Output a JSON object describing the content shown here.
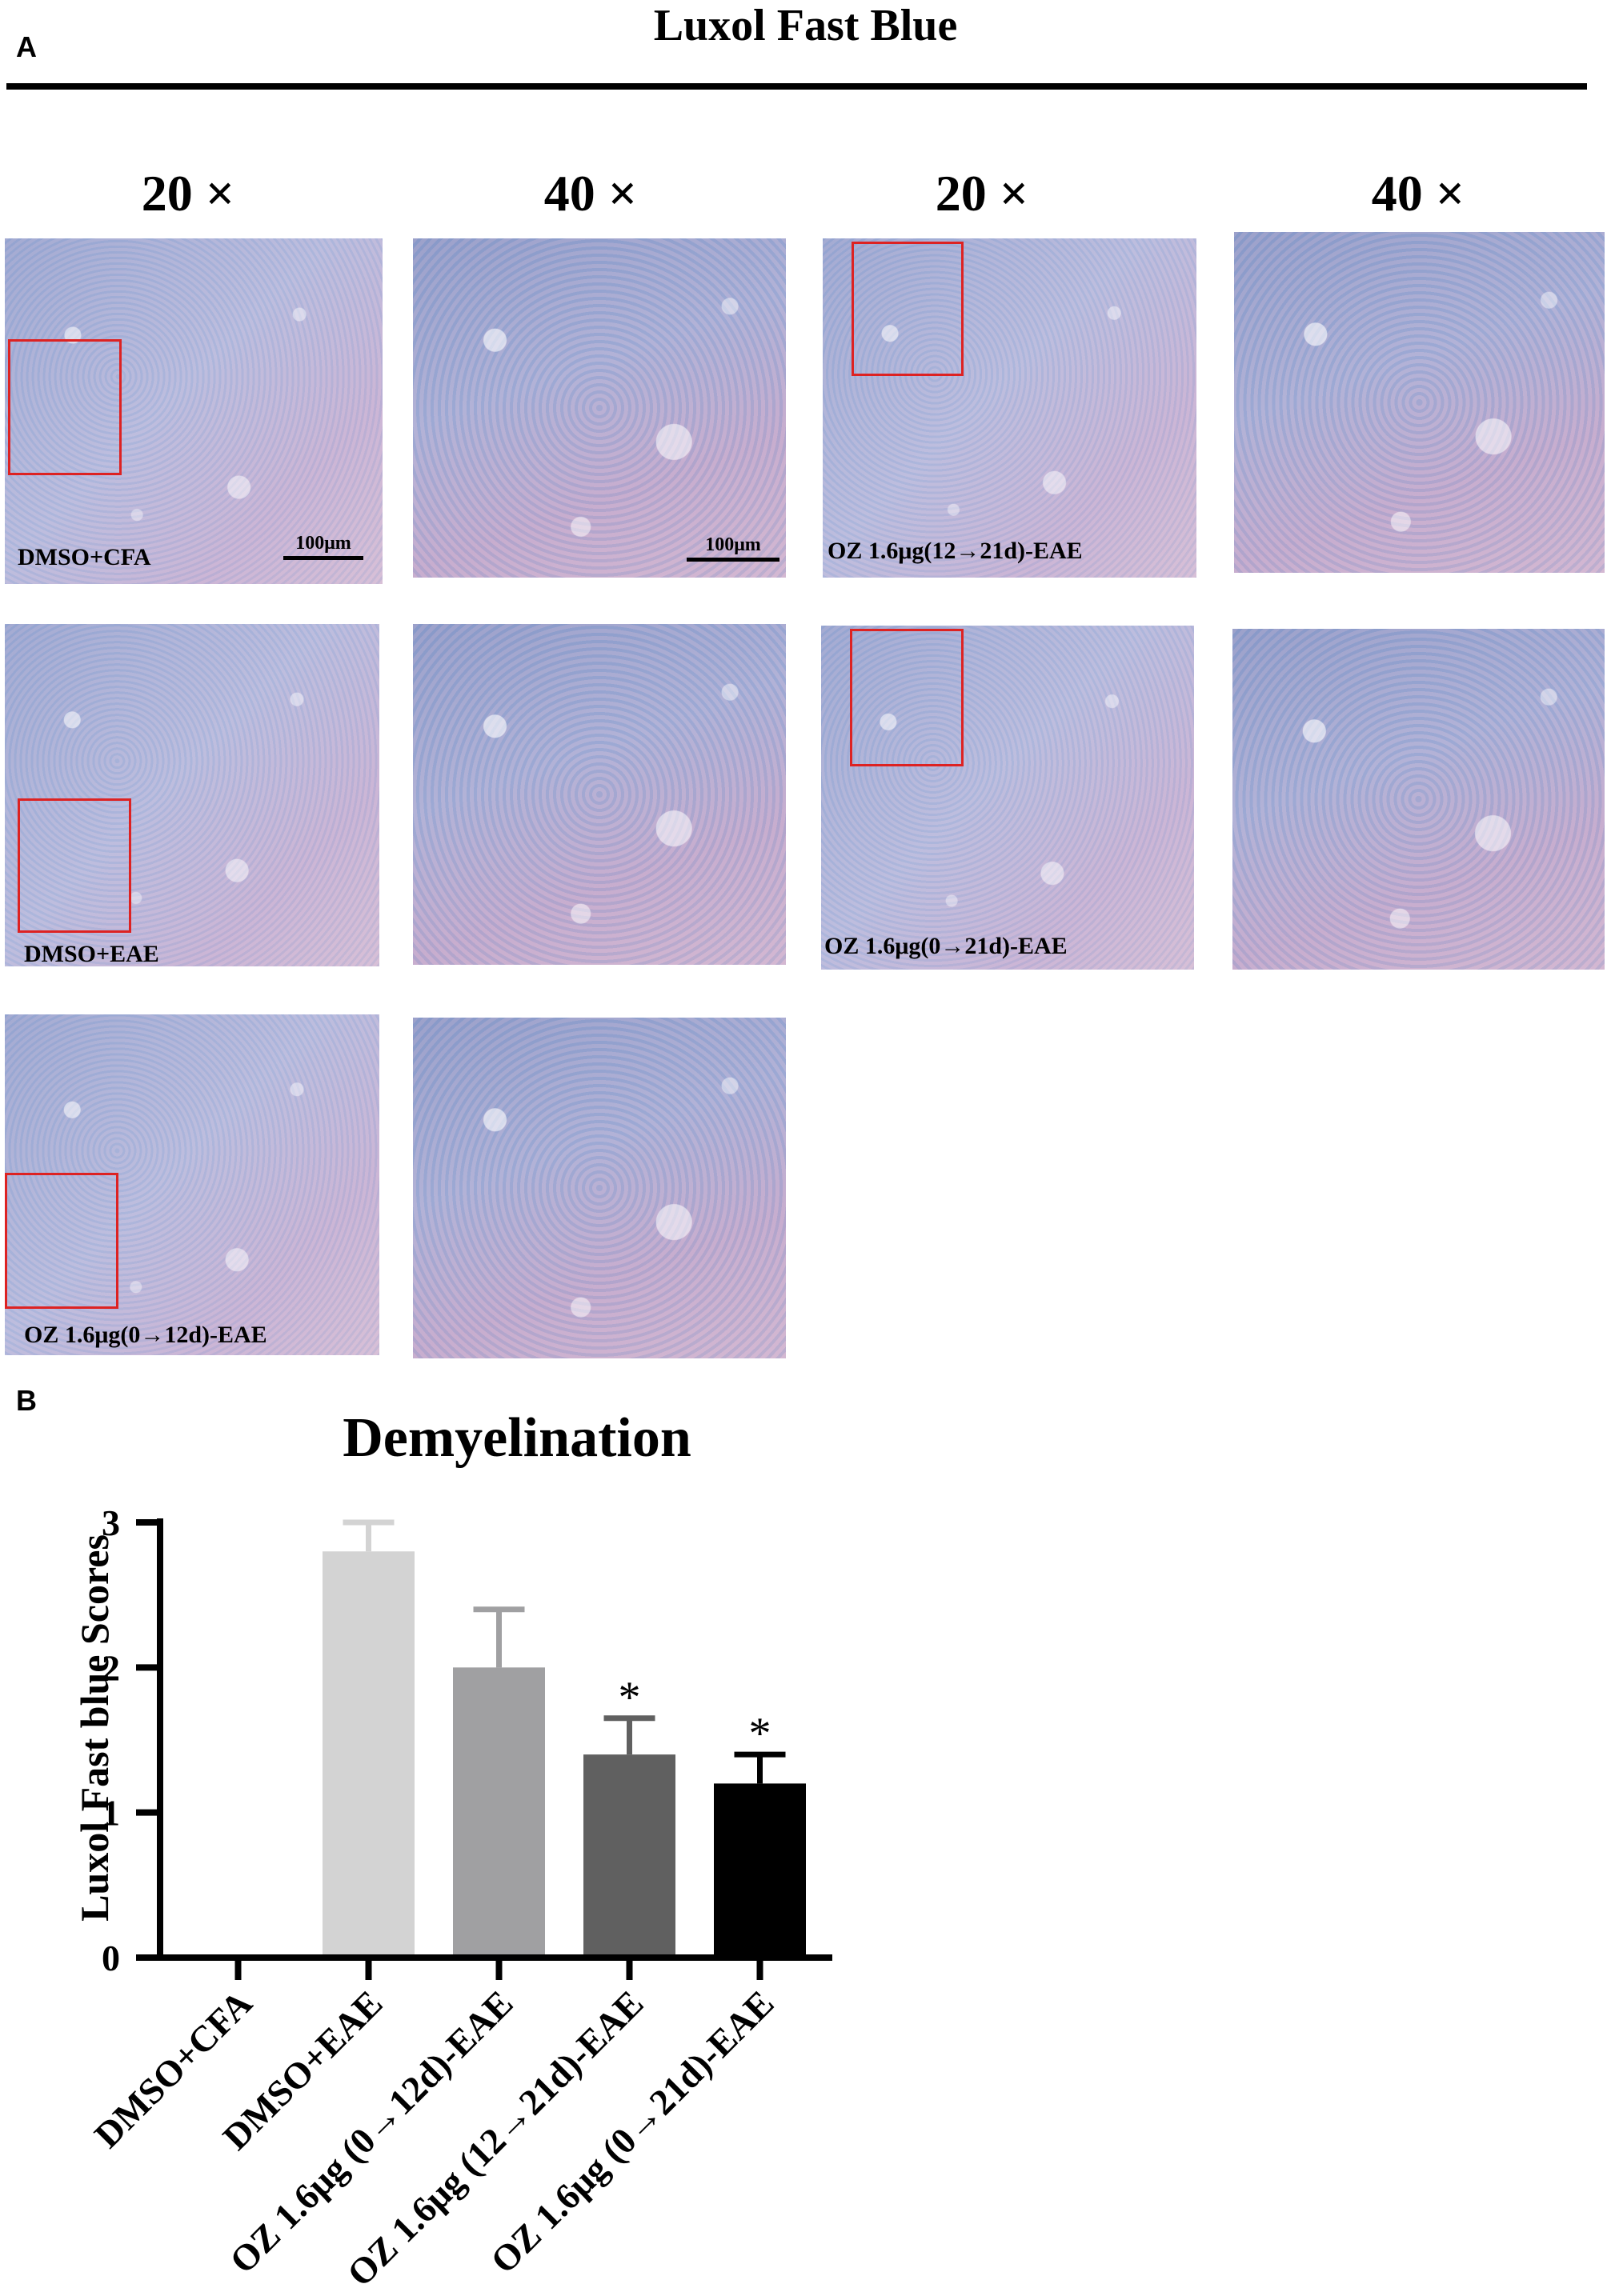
{
  "panel_a": {
    "letter": "A",
    "title": "Luxol Fast Blue",
    "magnifications": [
      "20 ×",
      "40 ×",
      "20 ×",
      "40 ×"
    ],
    "scale_bar": "100μm",
    "groups": [
      {
        "label": "DMSO+CFA"
      },
      {
        "label": "DMSO+EAE"
      },
      {
        "label": "OZ 1.6μg(0→12d)-EAE"
      },
      {
        "label": "OZ 1.6μg(12→21d)-EAE"
      },
      {
        "label": "OZ 1.6μg(0→21d)-EAE"
      }
    ]
  },
  "panel_b": {
    "letter": "B"
  },
  "chart_data": {
    "type": "bar",
    "title": "Demyelination",
    "xlabel": "",
    "ylabel": "Luxol Fast blue Scores",
    "ylim": [
      0,
      3
    ],
    "yticks": [
      0,
      1,
      2,
      3
    ],
    "grid": false,
    "categories": [
      "DMSO+CFA",
      "DMSO+EAE",
      "OZ 1.6μg (0→12d)-EAE",
      "OZ 1.6μg (12→21d)-EAE",
      "OZ 1.6μg (0→21d)-EAE"
    ],
    "values": [
      0,
      2.8,
      2.0,
      1.4,
      1.2
    ],
    "errors": [
      0,
      0.2,
      0.4,
      0.25,
      0.2
    ],
    "significance": [
      "",
      "",
      "",
      "*",
      "*"
    ],
    "colors": [
      "#d3d3d3",
      "#d3d3d3",
      "#a0a0a2",
      "#606060",
      "#000000"
    ]
  }
}
